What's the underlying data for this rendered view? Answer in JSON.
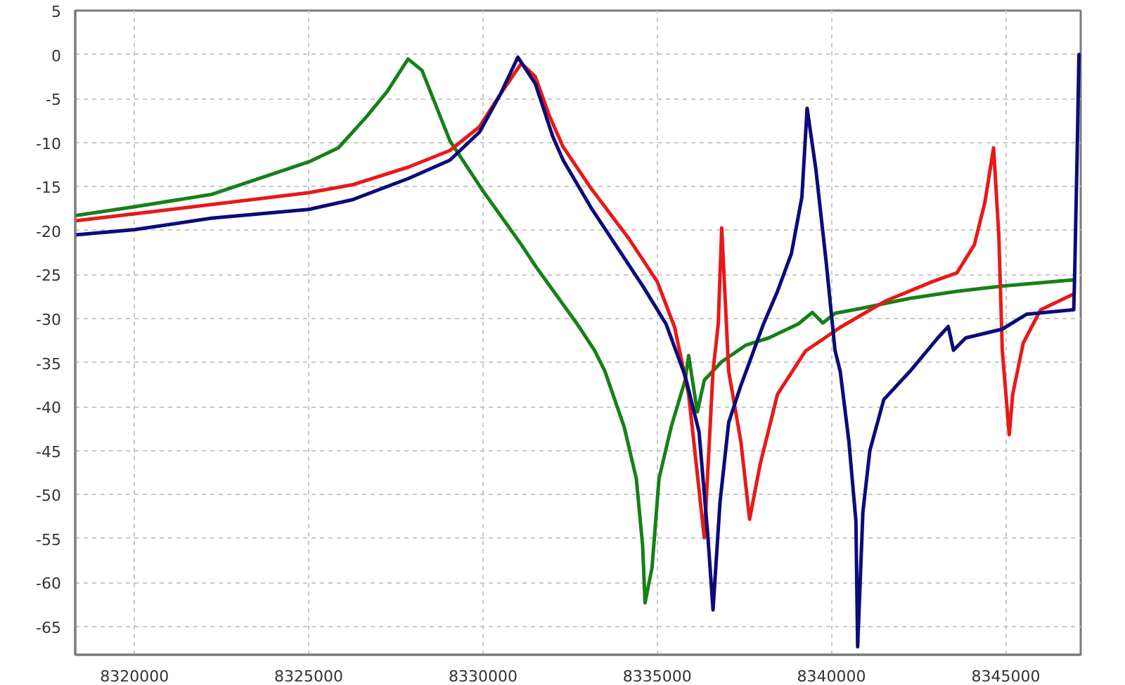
{
  "chart_data": {
    "type": "line",
    "xlim": [
      8318300,
      8347150
    ],
    "ylim": [
      -68.2,
      5
    ],
    "xticks": [
      8320000,
      8325000,
      8330000,
      8335000,
      8340000,
      8345000
    ],
    "yticks": [
      5,
      0,
      -5,
      -10,
      -15,
      -20,
      -25,
      -30,
      -35,
      -40,
      -45,
      -50,
      -55,
      -60,
      -65
    ],
    "grid": true,
    "series": [
      {
        "color": "#178017",
        "x": [
          8318300,
          8320000,
          8322200,
          8325000,
          8325850,
          8326650,
          8327250,
          8327850,
          8328250,
          8329050,
          8330000,
          8331100,
          8331500,
          8332700,
          8333200,
          8333500,
          8334050,
          8334400,
          8334580,
          8334650,
          8334850,
          8335050,
          8335400,
          8335800,
          8335900,
          8336150,
          8336350,
          8336850,
          8337550,
          8338200,
          8339050,
          8339450,
          8339750,
          8340100,
          8340900,
          8342250,
          8343600,
          8344900,
          8346950
        ],
        "values": [
          -18.3,
          -17.3,
          -15.9,
          -12.2,
          -10.6,
          -7.1,
          -4.2,
          -0.5,
          -1.8,
          -9.8,
          -15.5,
          -21.6,
          -24,
          -30.6,
          -33.6,
          -36,
          -42.3,
          -48.2,
          -55.8,
          -62.3,
          -58.3,
          -48.2,
          -42.3,
          -37,
          -34.2,
          -40.6,
          -37,
          -34.9,
          -33,
          -32.2,
          -30.6,
          -29.3,
          -30.5,
          -29.4,
          -28.8,
          -27.7,
          -26.9,
          -26.3,
          -25.6
        ]
      },
      {
        "color": "#e81919",
        "x": [
          8318300,
          8320000,
          8325000,
          8326250,
          8327850,
          8329050,
          8329900,
          8330500,
          8331100,
          8331500,
          8331900,
          8332300,
          8333100,
          8334200,
          8335000,
          8335500,
          8335900,
          8336350,
          8336600,
          8336750,
          8336850,
          8337050,
          8337400,
          8337650,
          8337950,
          8338450,
          8339250,
          8340250,
          8341550,
          8342900,
          8343600,
          8344100,
          8344400,
          8344650,
          8344800,
          8344900,
          8345100,
          8345200,
          8345500,
          8346000,
          8346950
        ],
        "values": [
          -18.9,
          -18.1,
          -15.7,
          -14.8,
          -12.8,
          -10.9,
          -8.2,
          -4.5,
          -1,
          -2.5,
          -6.9,
          -10.5,
          -15.2,
          -21,
          -25.8,
          -31,
          -38.6,
          -54.9,
          -36,
          -30.6,
          -19.7,
          -36,
          -44,
          -52.8,
          -46.6,
          -38.6,
          -33.7,
          -31,
          -28,
          -25.8,
          -24.8,
          -21.6,
          -16.8,
          -10.6,
          -20.5,
          -33.6,
          -43.2,
          -38.6,
          -32.8,
          -29,
          -27.2
        ]
      },
      {
        "color": "#0b0b7a",
        "x": [
          8318300,
          8320000,
          8322200,
          8325000,
          8326250,
          8327850,
          8329050,
          8329900,
          8330500,
          8331000,
          8331500,
          8332000,
          8332300,
          8333100,
          8334600,
          8335250,
          8335800,
          8336200,
          8336450,
          8336600,
          8336800,
          8337050,
          8337400,
          8338050,
          8338450,
          8338850,
          8339150,
          8339300,
          8339550,
          8339850,
          8340100,
          8340250,
          8340500,
          8340700,
          8340750,
          8340900,
          8341100,
          8341500,
          8342250,
          8343050,
          8343350,
          8343500,
          8343850,
          8344900,
          8345600,
          8346950,
          8346975,
          8347050,
          8347100
        ],
        "values": [
          -20.5,
          -19.9,
          -18.6,
          -17.6,
          -16.5,
          -14.1,
          -12,
          -8.8,
          -4.5,
          -0.3,
          -3.3,
          -9.3,
          -12,
          -17.4,
          -26.4,
          -30.6,
          -36.5,
          -42.9,
          -54.6,
          -63.1,
          -50.9,
          -41.8,
          -37.6,
          -30.6,
          -26.9,
          -22.6,
          -16.2,
          -6.1,
          -13,
          -23.7,
          -33.6,
          -36,
          -44,
          -53,
          -67.3,
          -52,
          -45,
          -39.2,
          -36,
          -32.2,
          -30.9,
          -33.6,
          -32.2,
          -31.2,
          -29.5,
          -29,
          -25.3,
          -10.9,
          0
        ]
      }
    ]
  }
}
